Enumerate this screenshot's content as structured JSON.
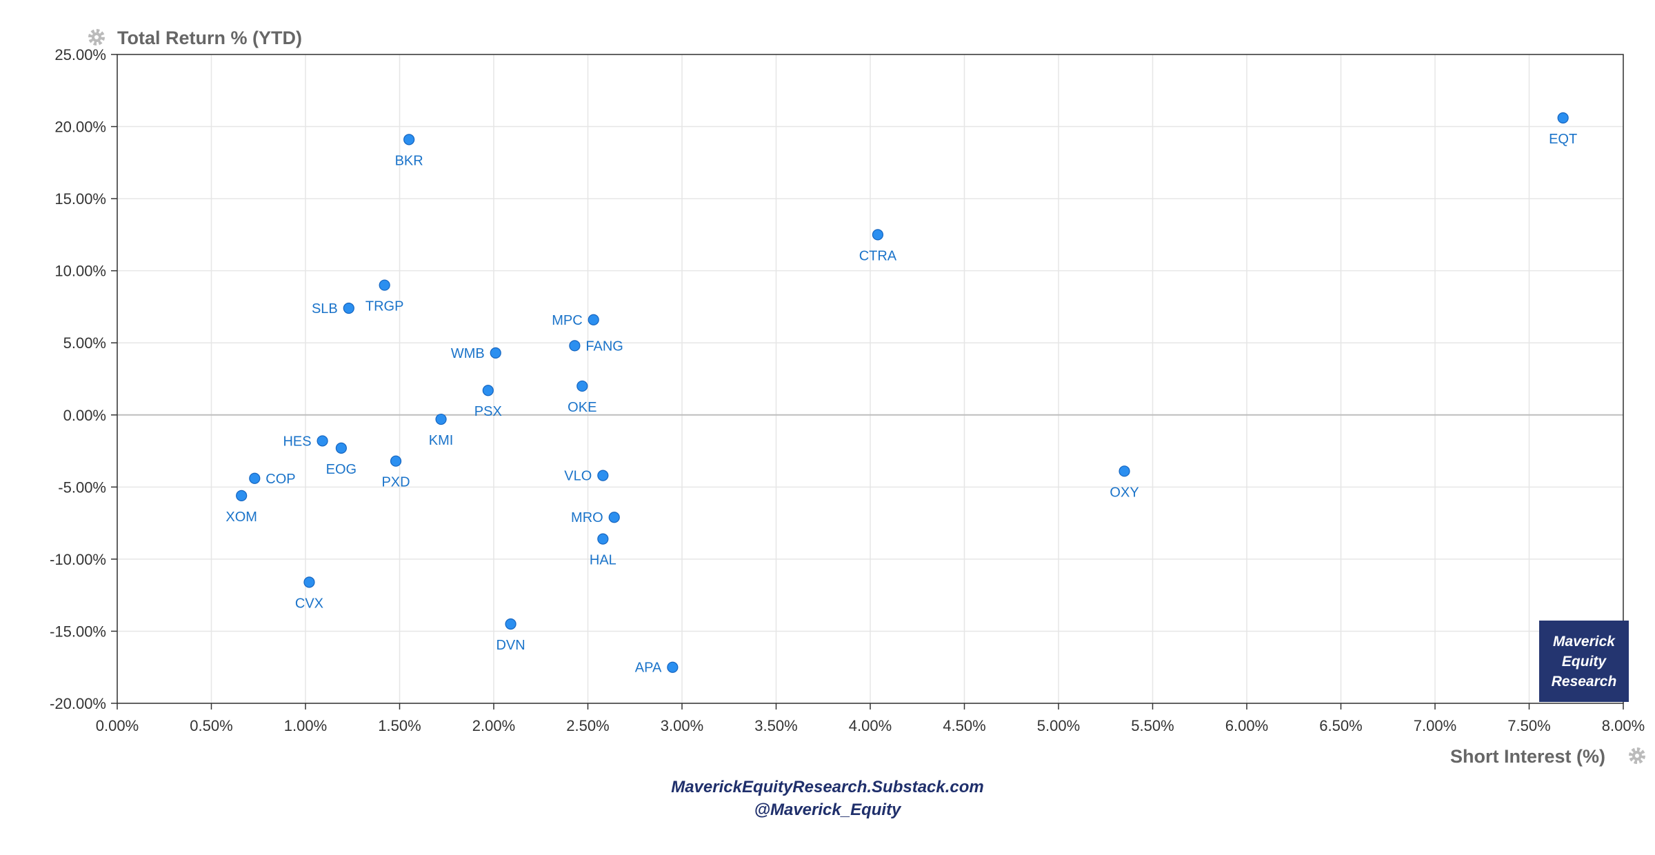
{
  "chart_data": {
    "type": "scatter",
    "title": "",
    "xlabel": "Short Interest (%)",
    "ylabel": "Total Return % (YTD)",
    "xlim": [
      0,
      8
    ],
    "ylim": [
      -20,
      25
    ],
    "x_ticks": [
      "0.00%",
      "0.50%",
      "1.00%",
      "1.50%",
      "2.00%",
      "2.50%",
      "3.00%",
      "3.50%",
      "4.00%",
      "4.50%",
      "5.00%",
      "5.50%",
      "6.00%",
      "6.50%",
      "7.00%",
      "7.50%",
      "8.00%"
    ],
    "y_ticks": [
      "25.00%",
      "20.00%",
      "15.00%",
      "10.00%",
      "5.00%",
      "0.00%",
      "-5.00%",
      "-10.00%",
      "-15.00%",
      "-20.00%"
    ],
    "grid": true,
    "point_color": "#2b8ff0",
    "label_color": "#1a73c9",
    "points": [
      {
        "label": "EQT",
        "x": 7.68,
        "y": 20.6,
        "pos": "below"
      },
      {
        "label": "BKR",
        "x": 1.55,
        "y": 19.1,
        "pos": "below"
      },
      {
        "label": "CTRA",
        "x": 4.04,
        "y": 12.5,
        "pos": "below"
      },
      {
        "label": "TRGP",
        "x": 1.42,
        "y": 9.0,
        "pos": "below"
      },
      {
        "label": "SLB",
        "x": 1.23,
        "y": 7.4,
        "pos": "left"
      },
      {
        "label": "MPC",
        "x": 2.53,
        "y": 6.6,
        "pos": "left"
      },
      {
        "label": "FANG",
        "x": 2.43,
        "y": 4.8,
        "pos": "right"
      },
      {
        "label": "WMB",
        "x": 2.01,
        "y": 4.3,
        "pos": "left"
      },
      {
        "label": "OKE",
        "x": 2.47,
        "y": 2.0,
        "pos": "below"
      },
      {
        "label": "PSX",
        "x": 1.97,
        "y": 1.7,
        "pos": "below"
      },
      {
        "label": "KMI",
        "x": 1.72,
        "y": -0.3,
        "pos": "below"
      },
      {
        "label": "HES",
        "x": 1.09,
        "y": -1.8,
        "pos": "left"
      },
      {
        "label": "EOG",
        "x": 1.19,
        "y": -2.3,
        "pos": "below"
      },
      {
        "label": "PXD",
        "x": 1.48,
        "y": -3.2,
        "pos": "below"
      },
      {
        "label": "VLO",
        "x": 2.58,
        "y": -4.2,
        "pos": "left"
      },
      {
        "label": "OXY",
        "x": 5.35,
        "y": -3.9,
        "pos": "below"
      },
      {
        "label": "COP",
        "x": 0.73,
        "y": -4.4,
        "pos": "right"
      },
      {
        "label": "XOM",
        "x": 0.66,
        "y": -5.6,
        "pos": "below"
      },
      {
        "label": "MRO",
        "x": 2.64,
        "y": -7.1,
        "pos": "left"
      },
      {
        "label": "HAL",
        "x": 2.58,
        "y": -8.6,
        "pos": "below"
      },
      {
        "label": "CVX",
        "x": 1.02,
        "y": -11.6,
        "pos": "below"
      },
      {
        "label": "DVN",
        "x": 2.09,
        "y": -14.5,
        "pos": "below"
      },
      {
        "label": "APA",
        "x": 2.95,
        "y": -17.5,
        "pos": "left"
      }
    ]
  },
  "watermark": {
    "line1": "Maverick",
    "line2": "Equity",
    "line3": "Research"
  },
  "footer": {
    "line1": "MaverickEquityResearch.Substack.com",
    "line2": "@Maverick_Equity"
  },
  "icons": {
    "axis_settings": "gear-icon"
  }
}
